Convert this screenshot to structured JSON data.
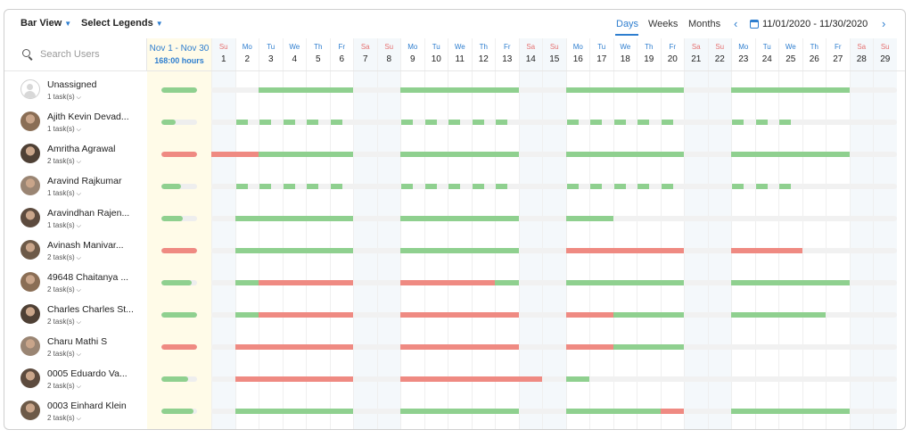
{
  "toolbar": {
    "bar_view": "Bar View",
    "select_legends": "Select Legends",
    "views": [
      "Days",
      "Weeks",
      "Months"
    ],
    "active_view": "Days",
    "date_range": "11/01/2020 - 11/30/2020"
  },
  "search": {
    "placeholder": "Search Users"
  },
  "summary": {
    "range": "Nov 1 - Nov 30",
    "hours": "168:00 hours"
  },
  "colors": {
    "ok": "#8fd08f",
    "over": "#ef8a82",
    "accent": "#2e7ecf"
  },
  "days": [
    {
      "dow": "Su",
      "day": "1"
    },
    {
      "dow": "Mo",
      "day": "2"
    },
    {
      "dow": "Tu",
      "day": "3"
    },
    {
      "dow": "We",
      "day": "4"
    },
    {
      "dow": "Th",
      "day": "5"
    },
    {
      "dow": "Fr",
      "day": "6"
    },
    {
      "dow": "Sa",
      "day": "7"
    },
    {
      "dow": "Su",
      "day": "8"
    },
    {
      "dow": "Mo",
      "day": "9"
    },
    {
      "dow": "Tu",
      "day": "10"
    },
    {
      "dow": "We",
      "day": "11"
    },
    {
      "dow": "Th",
      "day": "12"
    },
    {
      "dow": "Fr",
      "day": "13"
    },
    {
      "dow": "Sa",
      "day": "14"
    },
    {
      "dow": "Su",
      "day": "15"
    },
    {
      "dow": "Mo",
      "day": "16"
    },
    {
      "dow": "Tu",
      "day": "17"
    },
    {
      "dow": "We",
      "day": "18"
    },
    {
      "dow": "Th",
      "day": "19"
    },
    {
      "dow": "Fr",
      "day": "20"
    },
    {
      "dow": "Sa",
      "day": "21"
    },
    {
      "dow": "Su",
      "day": "22"
    },
    {
      "dow": "Mo",
      "day": "23"
    },
    {
      "dow": "Tu",
      "day": "24"
    },
    {
      "dow": "We",
      "day": "25"
    },
    {
      "dow": "Th",
      "day": "26"
    },
    {
      "dow": "Fr",
      "day": "27"
    },
    {
      "dow": "Sa",
      "day": "28"
    },
    {
      "dow": "Su",
      "day": "29"
    }
  ],
  "users": [
    {
      "name": "Unassigned",
      "tasks": "1 task(s)",
      "avatar": "placeholder",
      "summary_status": "ok",
      "summary_fill": 1.0,
      "segments": [
        {
          "from": 3,
          "to": 6,
          "status": "ok"
        },
        {
          "from": 9,
          "to": 13,
          "status": "ok"
        },
        {
          "from": 16,
          "to": 20,
          "status": "ok"
        },
        {
          "from": 23,
          "to": 27,
          "status": "ok"
        }
      ]
    },
    {
      "name": "Ajith Kevin Devad...",
      "tasks": "1 task(s)",
      "avatar": "photo",
      "summary_status": "ok",
      "summary_fill": 0.4,
      "partial": true,
      "segments": [
        {
          "from": 2,
          "to": 6,
          "status": "ok"
        },
        {
          "from": 9,
          "to": 13,
          "status": "ok"
        },
        {
          "from": 16,
          "to": 20,
          "status": "ok"
        },
        {
          "from": 23,
          "to": 25,
          "status": "ok"
        }
      ]
    },
    {
      "name": "Amritha Agrawal",
      "tasks": "2 task(s)",
      "avatar": "photo",
      "summary_status": "over",
      "summary_fill": 1.0,
      "segments": [
        {
          "from": 1,
          "to": 2,
          "status": "over"
        },
        {
          "from": 3,
          "to": 6,
          "status": "ok"
        },
        {
          "from": 9,
          "to": 13,
          "status": "ok"
        },
        {
          "from": 16,
          "to": 20,
          "status": "ok"
        },
        {
          "from": 23,
          "to": 27,
          "status": "ok"
        }
      ]
    },
    {
      "name": "Aravind Rajkumar",
      "tasks": "1 task(s)",
      "avatar": "photo",
      "summary_status": "ok",
      "summary_fill": 0.55,
      "partial": true,
      "segments": [
        {
          "from": 2,
          "to": 6,
          "status": "ok"
        },
        {
          "from": 9,
          "to": 13,
          "status": "ok"
        },
        {
          "from": 16,
          "to": 20,
          "status": "ok"
        },
        {
          "from": 23,
          "to": 25,
          "status": "ok"
        }
      ]
    },
    {
      "name": "Aravindhan Rajen...",
      "tasks": "1 task(s)",
      "avatar": "photo",
      "summary_status": "ok",
      "summary_fill": 0.6,
      "segments": [
        {
          "from": 2,
          "to": 6,
          "status": "ok"
        },
        {
          "from": 9,
          "to": 13,
          "status": "ok"
        },
        {
          "from": 16,
          "to": 17,
          "status": "ok"
        }
      ]
    },
    {
      "name": "Avinash Manivar...",
      "tasks": "2 task(s)",
      "avatar": "photo",
      "summary_status": "over",
      "summary_fill": 1.0,
      "segments": [
        {
          "from": 2,
          "to": 6,
          "status": "ok"
        },
        {
          "from": 9,
          "to": 13,
          "status": "ok"
        },
        {
          "from": 16,
          "to": 20,
          "status": "over"
        },
        {
          "from": 23,
          "to": 25,
          "status": "over"
        }
      ]
    },
    {
      "name": "49648 Chaitanya ...",
      "tasks": "2 task(s)",
      "avatar": "photo",
      "summary_status": "ok",
      "summary_fill": 0.85,
      "segments": [
        {
          "from": 2,
          "to": 2,
          "status": "ok"
        },
        {
          "from": 3,
          "to": 6,
          "status": "over"
        },
        {
          "from": 9,
          "to": 12,
          "status": "over"
        },
        {
          "from": 13,
          "to": 13,
          "status": "ok"
        },
        {
          "from": 16,
          "to": 20,
          "status": "ok"
        },
        {
          "from": 23,
          "to": 27,
          "status": "ok"
        }
      ]
    },
    {
      "name": "Charles Charles St...",
      "tasks": "2 task(s)",
      "avatar": "photo",
      "summary_status": "ok",
      "summary_fill": 1.0,
      "segments": [
        {
          "from": 2,
          "to": 2,
          "status": "ok"
        },
        {
          "from": 3,
          "to": 6,
          "status": "over"
        },
        {
          "from": 9,
          "to": 13,
          "status": "over"
        },
        {
          "from": 16,
          "to": 17,
          "status": "over"
        },
        {
          "from": 18,
          "to": 20,
          "status": "ok"
        },
        {
          "from": 23,
          "to": 26,
          "status": "ok"
        }
      ]
    },
    {
      "name": "Charu Mathi S",
      "tasks": "2 task(s)",
      "avatar": "photo",
      "summary_status": "over",
      "summary_fill": 1.0,
      "segments": [
        {
          "from": 2,
          "to": 6,
          "status": "over"
        },
        {
          "from": 9,
          "to": 13,
          "status": "over"
        },
        {
          "from": 16,
          "to": 17,
          "status": "over"
        },
        {
          "from": 18,
          "to": 20,
          "status": "ok"
        }
      ]
    },
    {
      "name": "0005 Eduardo Va...",
      "tasks": "2 task(s)",
      "avatar": "photo",
      "summary_status": "ok",
      "summary_fill": 0.75,
      "segments": [
        {
          "from": 2,
          "to": 6,
          "status": "over"
        },
        {
          "from": 9,
          "to": 14,
          "status": "over"
        },
        {
          "from": 16,
          "to": 16,
          "status": "ok"
        }
      ]
    },
    {
      "name": "0003 Einhard Klein",
      "tasks": "2 task(s)",
      "avatar": "photo",
      "summary_status": "ok",
      "summary_fill": 0.9,
      "segments": [
        {
          "from": 2,
          "to": 6,
          "status": "ok"
        },
        {
          "from": 9,
          "to": 13,
          "status": "ok"
        },
        {
          "from": 16,
          "to": 19,
          "status": "ok"
        },
        {
          "from": 20,
          "to": 20,
          "status": "over"
        },
        {
          "from": 23,
          "to": 27,
          "status": "ok"
        }
      ]
    }
  ]
}
